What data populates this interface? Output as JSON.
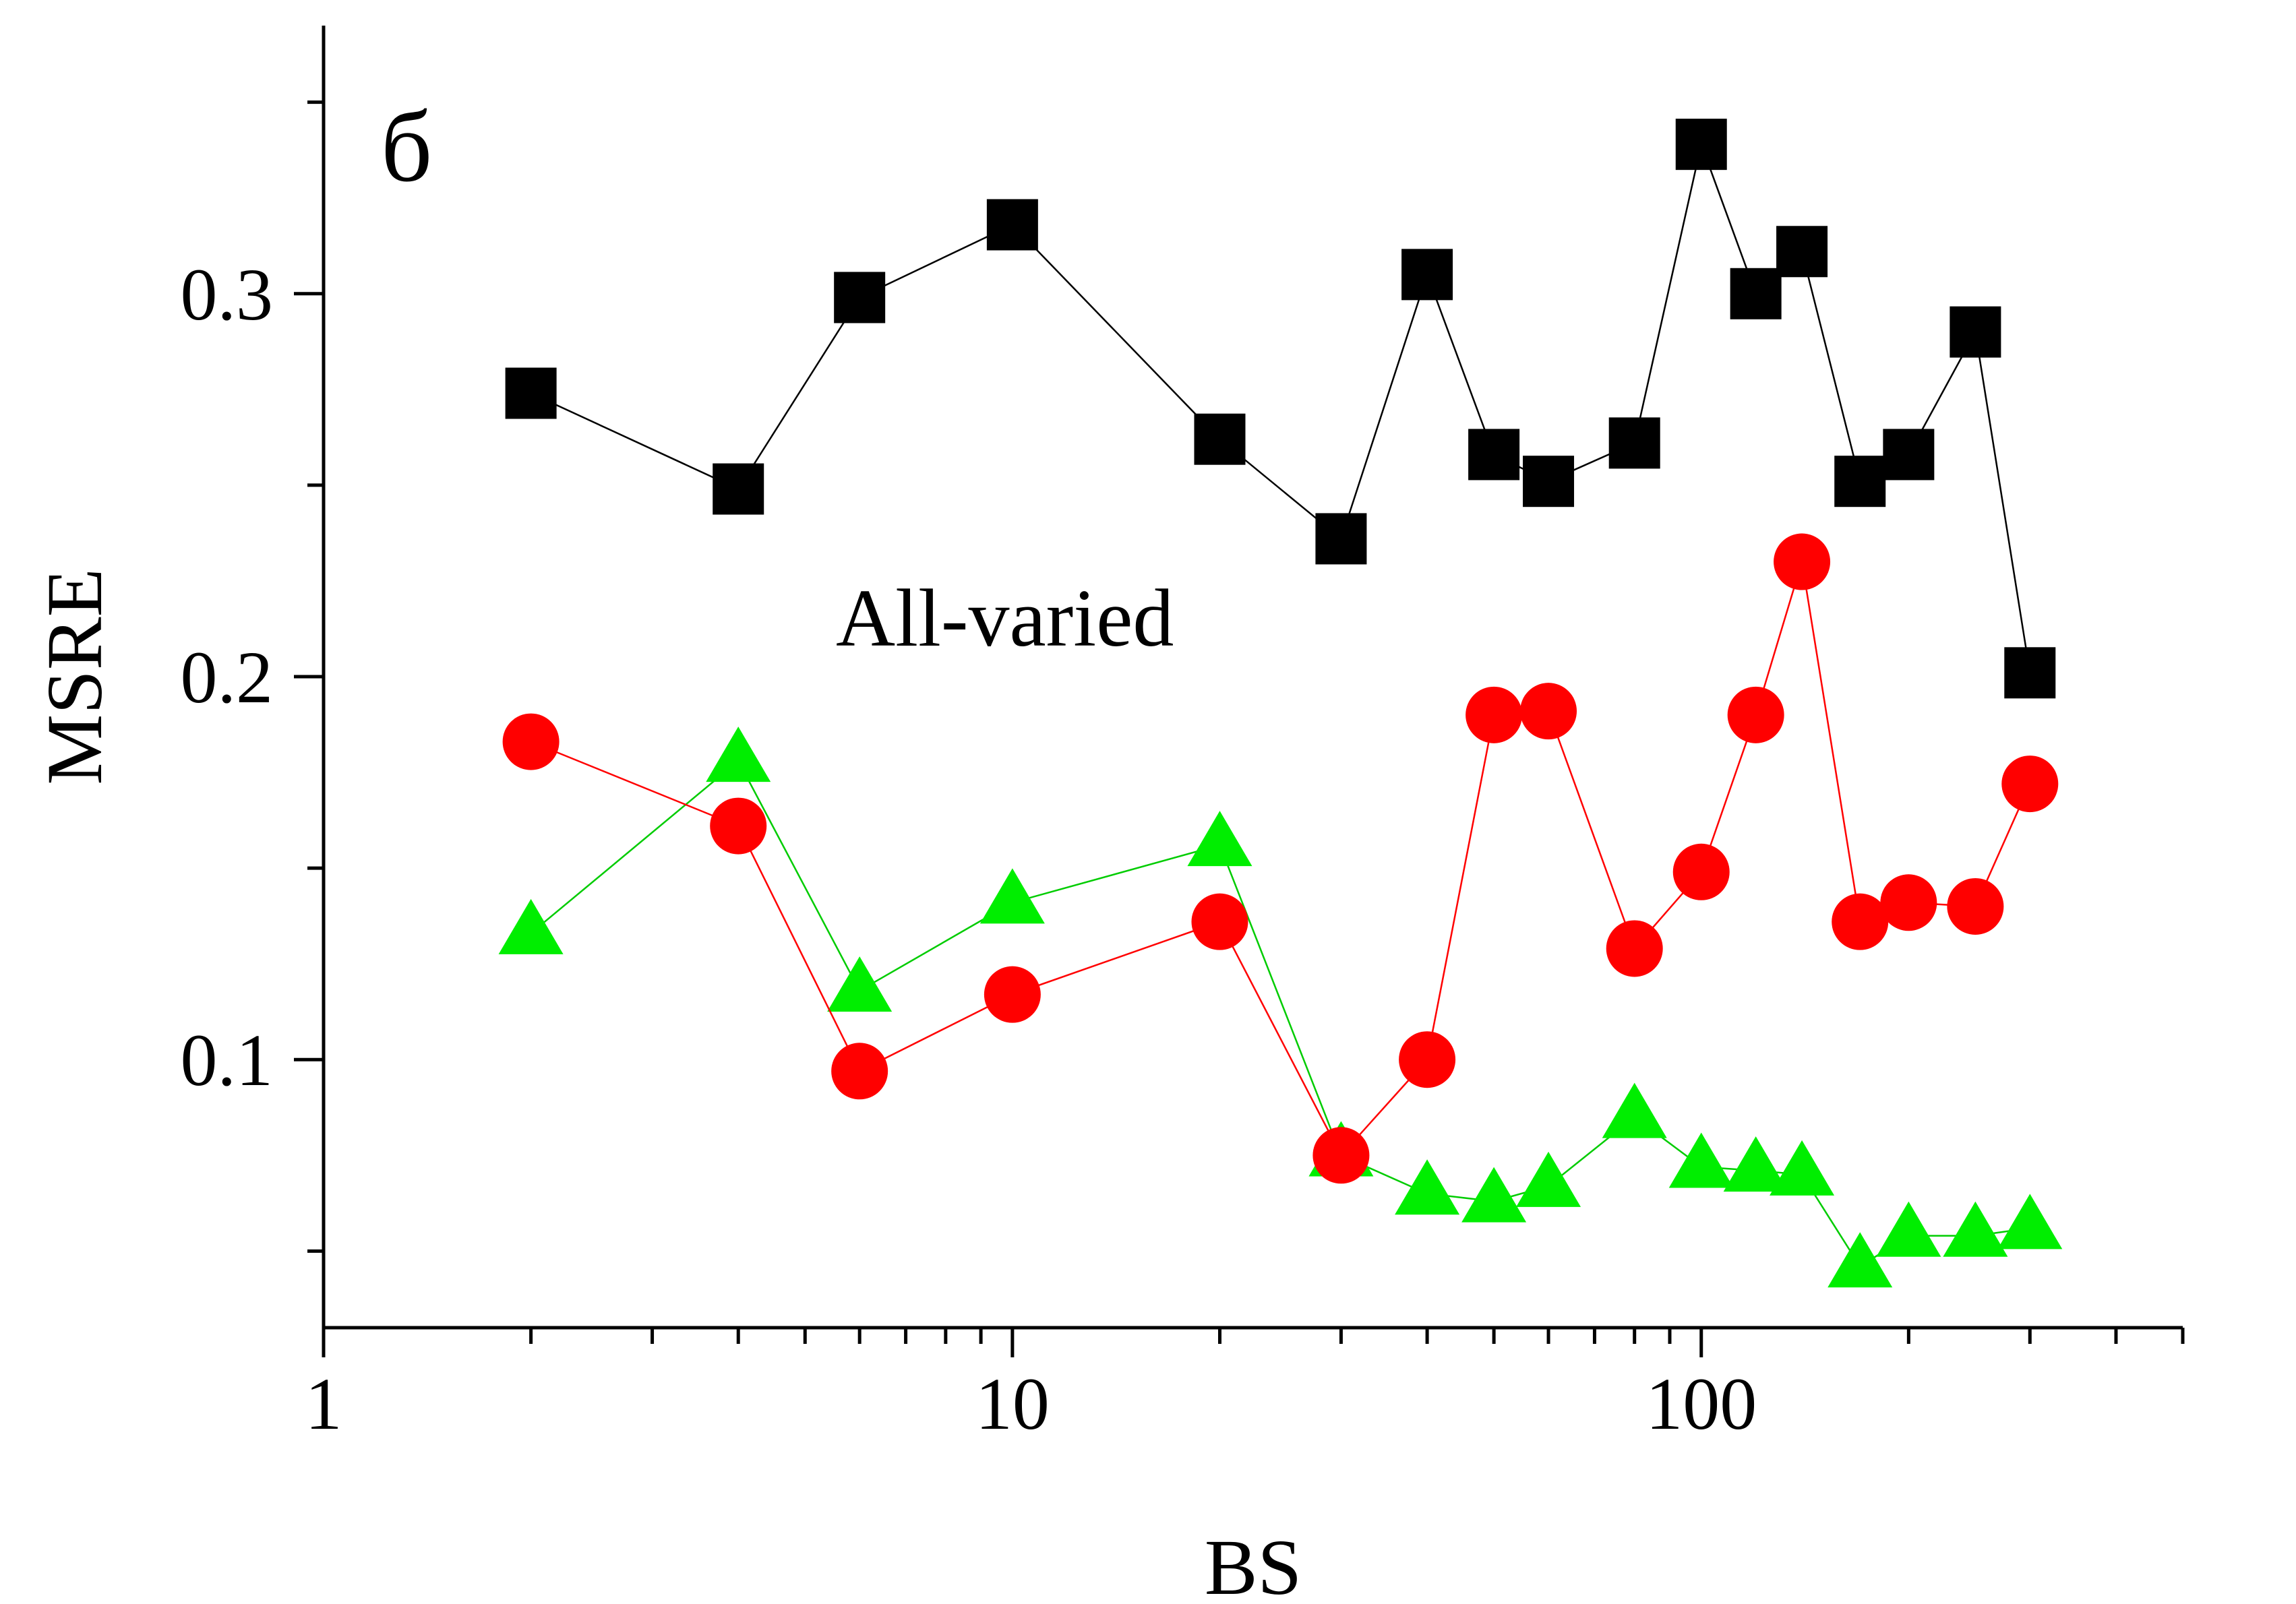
{
  "chart_data": {
    "type": "scatter",
    "panel_label": "б",
    "annotation": "All-varied",
    "xlabel": "BS",
    "ylabel": "MSRE",
    "x_scale": "log",
    "xlim": [
      1,
      500
    ],
    "ylim": [
      0.03,
      0.37
    ],
    "x_ticks": [
      {
        "value": 1,
        "label": "1"
      },
      {
        "value": 10,
        "label": "10"
      },
      {
        "value": 100,
        "label": "100"
      }
    ],
    "y_ticks": [
      {
        "value": 0.1,
        "label": "0.1"
      },
      {
        "value": 0.2,
        "label": "0.2"
      },
      {
        "value": 0.3,
        "label": "0.3"
      }
    ],
    "grid": false,
    "x": [
      2,
      4,
      6,
      10,
      20,
      30,
      40,
      50,
      60,
      80,
      100,
      120,
      140,
      170,
      200,
      250,
      300
    ],
    "series": [
      {
        "marker": "square",
        "color": "#000000",
        "values": [
          0.274,
          0.249,
          0.299,
          0.318,
          0.262,
          0.236,
          0.305,
          0.258,
          0.251,
          0.261,
          0.339,
          0.3,
          0.311,
          0.251,
          0.258,
          0.29,
          0.201
        ]
      },
      {
        "marker": "circle",
        "color": "#ff0000",
        "values": [
          0.183,
          0.161,
          0.097,
          0.117,
          0.136,
          0.075,
          0.1,
          0.19,
          0.191,
          0.129,
          0.149,
          0.19,
          0.23,
          0.136,
          0.141,
          0.14,
          0.172
        ]
      },
      {
        "marker": "triangle",
        "color": "#00ee00",
        "values": [
          0.133,
          0.178,
          0.118,
          0.141,
          0.156,
          0.075,
          0.065,
          0.063,
          0.067,
          0.085,
          0.072,
          0.071,
          0.07,
          0.046,
          0.054,
          0.054,
          0.056
        ]
      }
    ]
  }
}
